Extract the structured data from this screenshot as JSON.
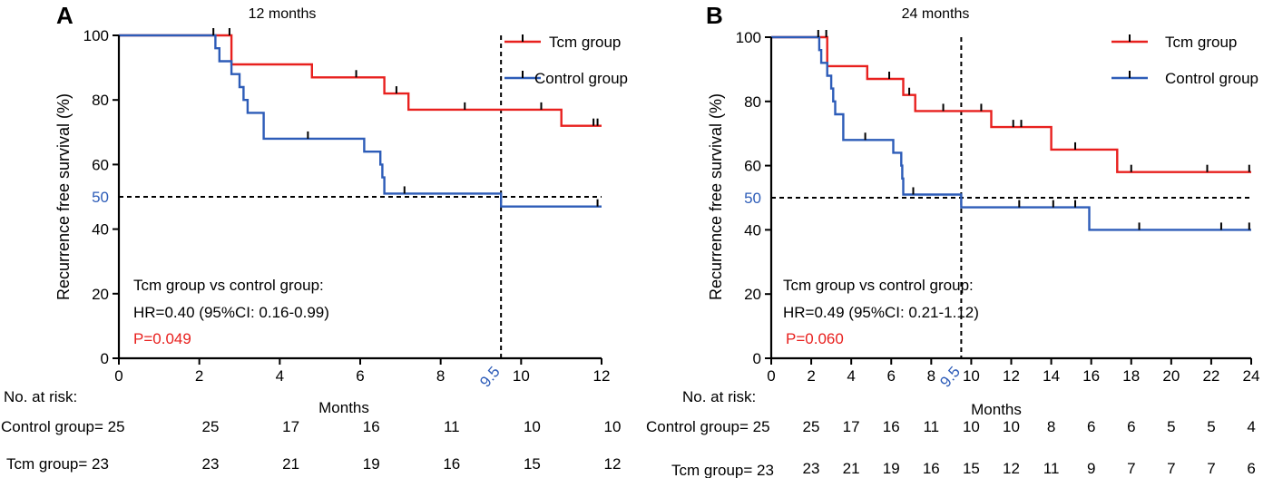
{
  "colors": {
    "tcm": "#e8201e",
    "control": "#2d5cb8",
    "axis": "#000000",
    "highlight": "#2d5cb8",
    "pvalue": "#e8201e"
  },
  "chart_data": [
    {
      "type": "line",
      "subtype": "kaplan-meier",
      "panel_label": "A",
      "title": "12 months",
      "xlabel": "Months",
      "ylabel": "Recurrence free survival (%)",
      "xlim": [
        0,
        12
      ],
      "ylim": [
        0,
        100
      ],
      "xticks": [
        "0",
        "2",
        "4",
        "6",
        "8",
        "10",
        "12"
      ],
      "yticks": [
        "0",
        "20",
        "40",
        "60",
        "80",
        "100"
      ],
      "reference_lines": {
        "y": 50,
        "y_label": "50",
        "x": 9.5,
        "x_label": "9.5"
      },
      "legend_position": "top-right",
      "series": [
        {
          "name": "Tcm group",
          "key": "tcm",
          "steps": [
            [
              0,
              100
            ],
            [
              2.8,
              100
            ],
            [
              2.8,
              91
            ],
            [
              4.8,
              91
            ],
            [
              4.8,
              87
            ],
            [
              6.6,
              87
            ],
            [
              6.6,
              82
            ],
            [
              7.2,
              82
            ],
            [
              7.2,
              77
            ],
            [
              11,
              77
            ],
            [
              11,
              72
            ],
            [
              12,
              72
            ]
          ],
          "censor": [
            [
              2.75,
              100
            ],
            [
              5.9,
              87
            ],
            [
              6.9,
              82
            ],
            [
              8.6,
              77
            ],
            [
              10.5,
              77
            ],
            [
              11.8,
              72
            ],
            [
              11.9,
              72
            ]
          ]
        },
        {
          "name": "Control group",
          "key": "control",
          "steps": [
            [
              0,
              100
            ],
            [
              2.4,
              100
            ],
            [
              2.4,
              96
            ],
            [
              2.5,
              96
            ],
            [
              2.5,
              92
            ],
            [
              2.8,
              92
            ],
            [
              2.8,
              88
            ],
            [
              3.0,
              88
            ],
            [
              3.0,
              84
            ],
            [
              3.1,
              84
            ],
            [
              3.1,
              80
            ],
            [
              3.2,
              80
            ],
            [
              3.2,
              76
            ],
            [
              3.6,
              76
            ],
            [
              3.6,
              68
            ],
            [
              6.1,
              68
            ],
            [
              6.1,
              64
            ],
            [
              6.5,
              64
            ],
            [
              6.5,
              60
            ],
            [
              6.55,
              60
            ],
            [
              6.55,
              56
            ],
            [
              6.6,
              56
            ],
            [
              6.6,
              51
            ],
            [
              9.5,
              51
            ],
            [
              9.5,
              47
            ],
            [
              12,
              47
            ]
          ],
          "censor": [
            [
              2.35,
              100
            ],
            [
              4.7,
              68
            ],
            [
              7.1,
              51
            ],
            [
              11.9,
              47
            ]
          ]
        }
      ],
      "annotation": {
        "line1": "Tcm group vs control group:",
        "line2": "HR=0.40 (95%CI: 0.16-0.99)",
        "line3": "P=0.049"
      },
      "risk_table": {
        "header": "No. at risk:",
        "rows": [
          {
            "label": "Control group= 25",
            "values": [
              "25",
              "17",
              "16",
              "11",
              "10",
              "10"
            ]
          },
          {
            "label": "Tcm group= 23",
            "values": [
              "23",
              "21",
              "19",
              "16",
              "15",
              "12"
            ]
          }
        ]
      }
    },
    {
      "type": "line",
      "subtype": "kaplan-meier",
      "panel_label": "B",
      "title": "24 months",
      "xlabel": "Months",
      "ylabel": "Recurrence free survival (%)",
      "xlim": [
        0,
        24
      ],
      "ylim": [
        0,
        100
      ],
      "xticks": [
        "0",
        "2",
        "4",
        "6",
        "8",
        "10",
        "12",
        "14",
        "16",
        "18",
        "20",
        "22",
        "24"
      ],
      "yticks": [
        "0",
        "20",
        "40",
        "60",
        "80",
        "100"
      ],
      "reference_lines": {
        "y": 50,
        "y_label": "50",
        "x": 9.5,
        "x_label": "9.5"
      },
      "legend_position": "top-right",
      "series": [
        {
          "name": "Tcm group",
          "key": "tcm",
          "steps": [
            [
              0,
              100
            ],
            [
              2.8,
              100
            ],
            [
              2.8,
              91
            ],
            [
              4.8,
              91
            ],
            [
              4.8,
              87
            ],
            [
              6.6,
              87
            ],
            [
              6.6,
              82
            ],
            [
              7.2,
              82
            ],
            [
              7.2,
              77
            ],
            [
              11,
              77
            ],
            [
              11,
              72
            ],
            [
              14,
              72
            ],
            [
              14,
              65
            ],
            [
              17.3,
              65
            ],
            [
              17.3,
              58
            ],
            [
              24,
              58
            ]
          ],
          "censor": [
            [
              2.75,
              100
            ],
            [
              5.9,
              87
            ],
            [
              6.9,
              82
            ],
            [
              8.6,
              77
            ],
            [
              10.5,
              77
            ],
            [
              12.1,
              72
            ],
            [
              12.5,
              72
            ],
            [
              15.2,
              65
            ],
            [
              18.0,
              58
            ],
            [
              21.8,
              58
            ],
            [
              23.9,
              58
            ]
          ]
        },
        {
          "name": "Control group",
          "key": "control",
          "steps": [
            [
              0,
              100
            ],
            [
              2.4,
              100
            ],
            [
              2.4,
              96
            ],
            [
              2.5,
              96
            ],
            [
              2.5,
              92
            ],
            [
              2.8,
              92
            ],
            [
              2.8,
              88
            ],
            [
              3.0,
              88
            ],
            [
              3.0,
              84
            ],
            [
              3.1,
              84
            ],
            [
              3.1,
              80
            ],
            [
              3.2,
              80
            ],
            [
              3.2,
              76
            ],
            [
              3.6,
              76
            ],
            [
              3.6,
              68
            ],
            [
              6.1,
              68
            ],
            [
              6.1,
              64
            ],
            [
              6.5,
              64
            ],
            [
              6.5,
              60
            ],
            [
              6.55,
              60
            ],
            [
              6.55,
              56
            ],
            [
              6.6,
              56
            ],
            [
              6.6,
              51
            ],
            [
              9.5,
              51
            ],
            [
              9.5,
              47
            ],
            [
              15.9,
              47
            ],
            [
              15.9,
              40
            ],
            [
              24,
              40
            ]
          ],
          "censor": [
            [
              2.35,
              100
            ],
            [
              4.7,
              68
            ],
            [
              7.1,
              51
            ],
            [
              12.4,
              47
            ],
            [
              14.1,
              47
            ],
            [
              15.2,
              47
            ],
            [
              18.4,
              40
            ],
            [
              22.5,
              40
            ],
            [
              23.9,
              40
            ]
          ]
        }
      ],
      "annotation": {
        "line1": "Tcm group vs control group:",
        "line2": "HR=0.49 (95%CI: 0.21-1.12)",
        "line3": "P=0.060"
      },
      "risk_table": {
        "header": "No. at risk:",
        "rows": [
          {
            "label": "Control group= 25",
            "values": [
              "25",
              "17",
              "16",
              "11",
              "10",
              "10",
              "8",
              "6",
              "6",
              "5",
              "5",
              "4"
            ]
          },
          {
            "label": "Tcm group= 23",
            "values": [
              "23",
              "21",
              "19",
              "16",
              "15",
              "12",
              "11",
              "9",
              "7",
              "7",
              "7",
              "6"
            ]
          }
        ]
      }
    }
  ]
}
